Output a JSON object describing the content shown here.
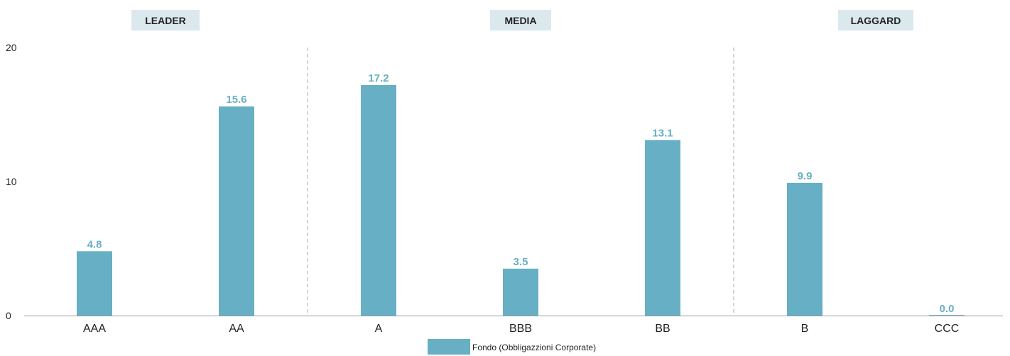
{
  "chart_data": {
    "type": "bar",
    "categories": [
      "AAA",
      "AA",
      "A",
      "BBB",
      "BB",
      "B",
      "CCC"
    ],
    "series": [
      {
        "name": "Fondo (Obbligazzioni Corporate)",
        "values": [
          4.8,
          15.6,
          17.2,
          3.5,
          13.1,
          9.9,
          0.0
        ],
        "labels": [
          "4.8",
          "15.6",
          "17.2",
          "3.5",
          "13.1",
          "9.9",
          "0.0"
        ]
      }
    ],
    "ylim": [
      0,
      20
    ],
    "yticks": [
      "0",
      "10",
      "20"
    ],
    "groups": [
      {
        "label": "LEADER",
        "categories": [
          "AAA",
          "AA"
        ]
      },
      {
        "label": "MEDIA",
        "categories": [
          "A",
          "BBB",
          "BB"
        ]
      },
      {
        "label": "LAGGARD",
        "categories": [
          "B",
          "CCC"
        ]
      }
    ],
    "legend_position": "bottom-center",
    "grid": false,
    "xlabel": "",
    "ylabel": "",
    "title": ""
  },
  "colors": {
    "bar": "#67afc4",
    "group_label_bg": "#dbe9ef",
    "axis": "#999999",
    "separator": "#aaaaaa"
  }
}
